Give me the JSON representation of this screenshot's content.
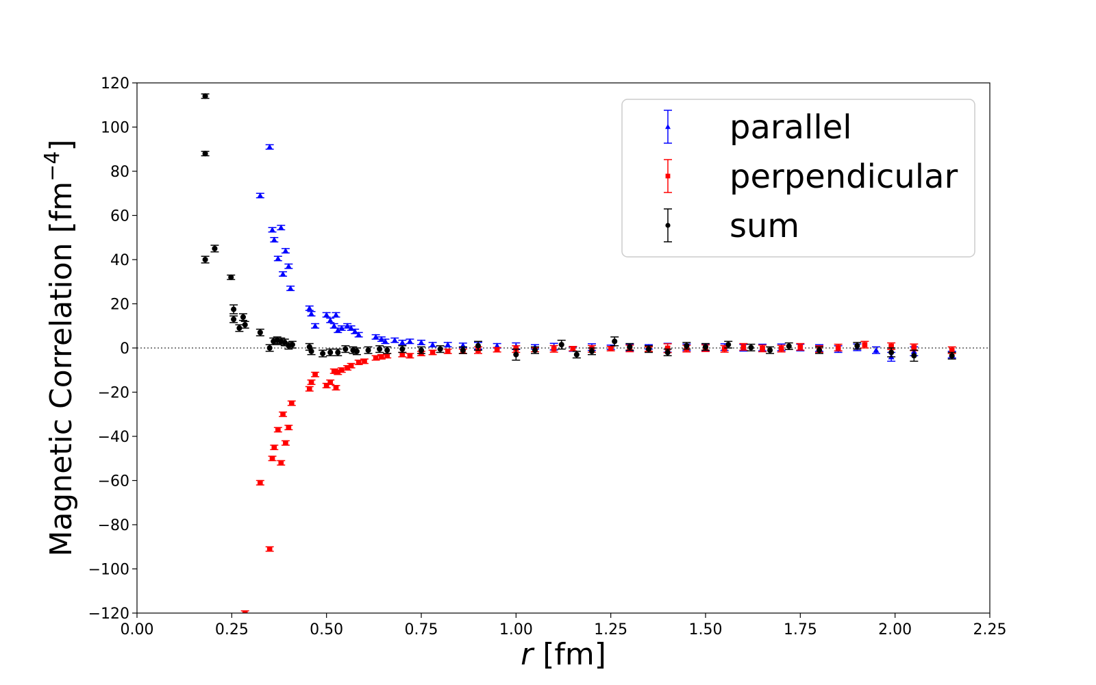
{
  "chart_data": {
    "type": "scatter",
    "title": "",
    "xlabel_italic": "r",
    "xlabel_rest": " [fm]",
    "ylabel": "Magnetic Correlation  [fm",
    "ylabel_sup": "−4",
    "ylabel_end": "]",
    "xlim": [
      0.0,
      2.25
    ],
    "ylim": [
      -120,
      120
    ],
    "xticks": [
      0.0,
      0.25,
      0.5,
      0.75,
      1.0,
      1.25,
      1.5,
      1.75,
      2.0,
      2.25
    ],
    "xtick_labels": [
      "0.00",
      "0.25",
      "0.50",
      "0.75",
      "1.00",
      "1.25",
      "1.50",
      "1.75",
      "2.00",
      "2.25"
    ],
    "yticks": [
      -120,
      -100,
      -80,
      -60,
      -40,
      -20,
      0,
      20,
      40,
      60,
      80,
      100,
      120
    ],
    "ytick_labels": [
      "−120",
      "−100",
      "−80",
      "−60",
      "−40",
      "−20",
      "0",
      "20",
      "40",
      "60",
      "80",
      "100",
      "120"
    ],
    "zero_line": true,
    "grid": false,
    "legend_position": "top-right",
    "legend": [
      "parallel",
      "perpendicular",
      "sum"
    ],
    "series": [
      {
        "name": "parallel",
        "color": "#0000ff",
        "marker": "triangle",
        "points": [
          [
            0.35,
            91,
            1
          ],
          [
            0.325,
            69,
            1
          ],
          [
            0.357,
            53.5,
            1
          ],
          [
            0.38,
            54.5,
            1
          ],
          [
            0.362,
            49,
            1
          ],
          [
            0.392,
            44,
            1
          ],
          [
            0.372,
            40.5,
            1
          ],
          [
            0.4,
            37,
            1
          ],
          [
            0.385,
            33.5,
            1
          ],
          [
            0.405,
            27,
            1
          ],
          [
            0.455,
            18,
            1
          ],
          [
            0.46,
            15.5,
            1
          ],
          [
            0.5,
            15,
            1
          ],
          [
            0.525,
            15,
            1
          ],
          [
            0.51,
            12.5,
            1
          ],
          [
            0.47,
            10,
            1
          ],
          [
            0.52,
            10,
            1
          ],
          [
            0.54,
            9,
            1
          ],
          [
            0.555,
            10,
            1
          ],
          [
            0.53,
            8,
            1
          ],
          [
            0.565,
            9,
            1
          ],
          [
            0.575,
            7.5,
            1
          ],
          [
            0.585,
            6,
            1
          ],
          [
            0.63,
            5,
            1
          ],
          [
            0.645,
            4,
            1
          ],
          [
            0.655,
            3,
            1
          ],
          [
            0.68,
            3.5,
            1
          ],
          [
            0.7,
            2.5,
            1
          ],
          [
            0.72,
            3,
            1
          ],
          [
            0.75,
            2.5,
            1
          ],
          [
            0.78,
            1.5,
            1
          ],
          [
            0.82,
            1.5,
            1
          ],
          [
            0.86,
            1.2,
            1
          ],
          [
            0.9,
            1,
            1.5
          ],
          [
            0.95,
            1,
            1
          ],
          [
            1.0,
            0.8,
            1.5
          ],
          [
            1.05,
            0.5,
            1
          ],
          [
            1.1,
            0.6,
            1.5
          ],
          [
            1.15,
            -0.5,
            1
          ],
          [
            1.2,
            0.4,
            1.5
          ],
          [
            1.25,
            0.3,
            1
          ],
          [
            1.3,
            0.2,
            1.5
          ],
          [
            1.35,
            0.5,
            1
          ],
          [
            1.4,
            0.1,
            2
          ],
          [
            1.45,
            0.3,
            1.5
          ],
          [
            1.5,
            0.1,
            1.5
          ],
          [
            1.55,
            0.4,
            1.5
          ],
          [
            1.6,
            0.1,
            1.5
          ],
          [
            1.65,
            0.2,
            1.5
          ],
          [
            1.7,
            0.3,
            1.5
          ],
          [
            1.75,
            0.2,
            1.5
          ],
          [
            1.8,
            0.0,
            1.5
          ],
          [
            1.85,
            -0.5,
            1.5
          ],
          [
            1.9,
            0.3,
            1.5
          ],
          [
            1.95,
            -1,
            1.5
          ],
          [
            1.99,
            -4,
            2
          ],
          [
            2.05,
            -1.5,
            2
          ],
          [
            2.15,
            -3,
            1.5
          ]
        ]
      },
      {
        "name": "perpendicular",
        "color": "#ff0000",
        "marker": "square",
        "points": [
          [
            0.285,
            -120,
            1
          ],
          [
            0.35,
            -91,
            1
          ],
          [
            0.325,
            -61,
            1
          ],
          [
            0.357,
            -50,
            1
          ],
          [
            0.38,
            -52,
            1
          ],
          [
            0.362,
            -45,
            1
          ],
          [
            0.392,
            -43,
            1
          ],
          [
            0.372,
            -37,
            1
          ],
          [
            0.4,
            -36,
            1
          ],
          [
            0.385,
            -30,
            1
          ],
          [
            0.408,
            -25,
            1
          ],
          [
            0.455,
            -18.5,
            1
          ],
          [
            0.46,
            -15.5,
            1
          ],
          [
            0.5,
            -17,
            1
          ],
          [
            0.525,
            -18,
            1
          ],
          [
            0.51,
            -15.5,
            1
          ],
          [
            0.47,
            -12,
            1
          ],
          [
            0.52,
            -10.5,
            1
          ],
          [
            0.54,
            -10,
            1
          ],
          [
            0.555,
            -9,
            1
          ],
          [
            0.53,
            -11,
            1
          ],
          [
            0.565,
            -8,
            1
          ],
          [
            0.585,
            -6.5,
            1
          ],
          [
            0.6,
            -6,
            1
          ],
          [
            0.63,
            -4.5,
            1
          ],
          [
            0.645,
            -4,
            1
          ],
          [
            0.66,
            -3.5,
            1
          ],
          [
            0.7,
            -3,
            1
          ],
          [
            0.72,
            -3.5,
            1
          ],
          [
            0.75,
            -2.5,
            1
          ],
          [
            0.78,
            -2,
            1
          ],
          [
            0.82,
            -1.5,
            1
          ],
          [
            0.86,
            -1.5,
            1
          ],
          [
            0.9,
            -1,
            1.5
          ],
          [
            0.95,
            -0.8,
            1
          ],
          [
            1.0,
            -0.5,
            1.5
          ],
          [
            1.05,
            -0.7,
            1
          ],
          [
            1.1,
            -0.4,
            1.5
          ],
          [
            1.15,
            -0.3,
            1
          ],
          [
            1.2,
            -0.4,
            1.5
          ],
          [
            1.25,
            -0.3,
            1
          ],
          [
            1.3,
            -0.2,
            1.5
          ],
          [
            1.35,
            -0.5,
            1
          ],
          [
            1.4,
            -0.1,
            2
          ],
          [
            1.45,
            -0.3,
            1.5
          ],
          [
            1.5,
            -0.1,
            1.5
          ],
          [
            1.55,
            -0.4,
            1.5
          ],
          [
            1.6,
            0.5,
            1.5
          ],
          [
            1.65,
            -0.2,
            1.5
          ],
          [
            1.7,
            -0.3,
            1.5
          ],
          [
            1.75,
            0.5,
            1.5
          ],
          [
            1.8,
            -0.5,
            1.5
          ],
          [
            1.85,
            0.2,
            1.5
          ],
          [
            1.92,
            1.5,
            1.5
          ],
          [
            1.99,
            0.8,
            1.5
          ],
          [
            2.05,
            0.3,
            1.5
          ],
          [
            2.15,
            -1,
            1.5
          ]
        ]
      },
      {
        "name": "sum",
        "color": "#000000",
        "marker": "circle",
        "points": [
          [
            0.18,
            114,
            1
          ],
          [
            0.18,
            88,
            1
          ],
          [
            0.18,
            40,
            1.5
          ],
          [
            0.205,
            45,
            1.5
          ],
          [
            0.248,
            32,
            1
          ],
          [
            0.255,
            17.5,
            2
          ],
          [
            0.255,
            13,
            1.5
          ],
          [
            0.28,
            14,
            1.5
          ],
          [
            0.27,
            9,
            1.5
          ],
          [
            0.285,
            10.5,
            1.5
          ],
          [
            0.325,
            7,
            1.5
          ],
          [
            0.35,
            0,
            1.5
          ],
          [
            0.36,
            3,
            1.5
          ],
          [
            0.37,
            3.5,
            1.5
          ],
          [
            0.38,
            3,
            1.5
          ],
          [
            0.39,
            2.5,
            1.5
          ],
          [
            0.4,
            1,
            1.5
          ],
          [
            0.41,
            1.5,
            1.5
          ],
          [
            0.455,
            0.5,
            1.5
          ],
          [
            0.46,
            -1.5,
            1.5
          ],
          [
            0.49,
            -2.5,
            1.5
          ],
          [
            0.51,
            -2,
            1.5
          ],
          [
            0.53,
            -2,
            1.5
          ],
          [
            0.55,
            -0.5,
            1.5
          ],
          [
            0.57,
            -1,
            1.5
          ],
          [
            0.58,
            -1.5,
            1.5
          ],
          [
            0.61,
            -1,
            1.5
          ],
          [
            0.64,
            -0.5,
            1.5
          ],
          [
            0.66,
            -1,
            1.5
          ],
          [
            0.7,
            -0.5,
            1.5
          ],
          [
            0.75,
            -1,
            1.5
          ],
          [
            0.8,
            -0.5,
            1.5
          ],
          [
            0.86,
            -1,
            1.5
          ],
          [
            0.9,
            1,
            2
          ],
          [
            1.0,
            -3,
            2.5
          ],
          [
            1.05,
            -1,
            1.5
          ],
          [
            1.12,
            1.5,
            2
          ],
          [
            1.16,
            -3,
            1.5
          ],
          [
            1.2,
            -1.5,
            1.5
          ],
          [
            1.26,
            3,
            2
          ],
          [
            1.3,
            0.5,
            1.5
          ],
          [
            1.35,
            -0.5,
            1.5
          ],
          [
            1.4,
            -2,
            1.5
          ],
          [
            1.45,
            1,
            1.5
          ],
          [
            1.5,
            0.5,
            1.5
          ],
          [
            1.56,
            1.5,
            1.5
          ],
          [
            1.62,
            0.2,
            1.5
          ],
          [
            1.67,
            -1,
            1.5
          ],
          [
            1.72,
            0.8,
            1.5
          ],
          [
            1.8,
            -1,
            1.5
          ],
          [
            1.9,
            1,
            1.5
          ],
          [
            1.99,
            -2,
            2
          ],
          [
            2.05,
            -3.5,
            2.5
          ],
          [
            2.15,
            -3.5,
            1.5
          ]
        ]
      }
    ]
  }
}
